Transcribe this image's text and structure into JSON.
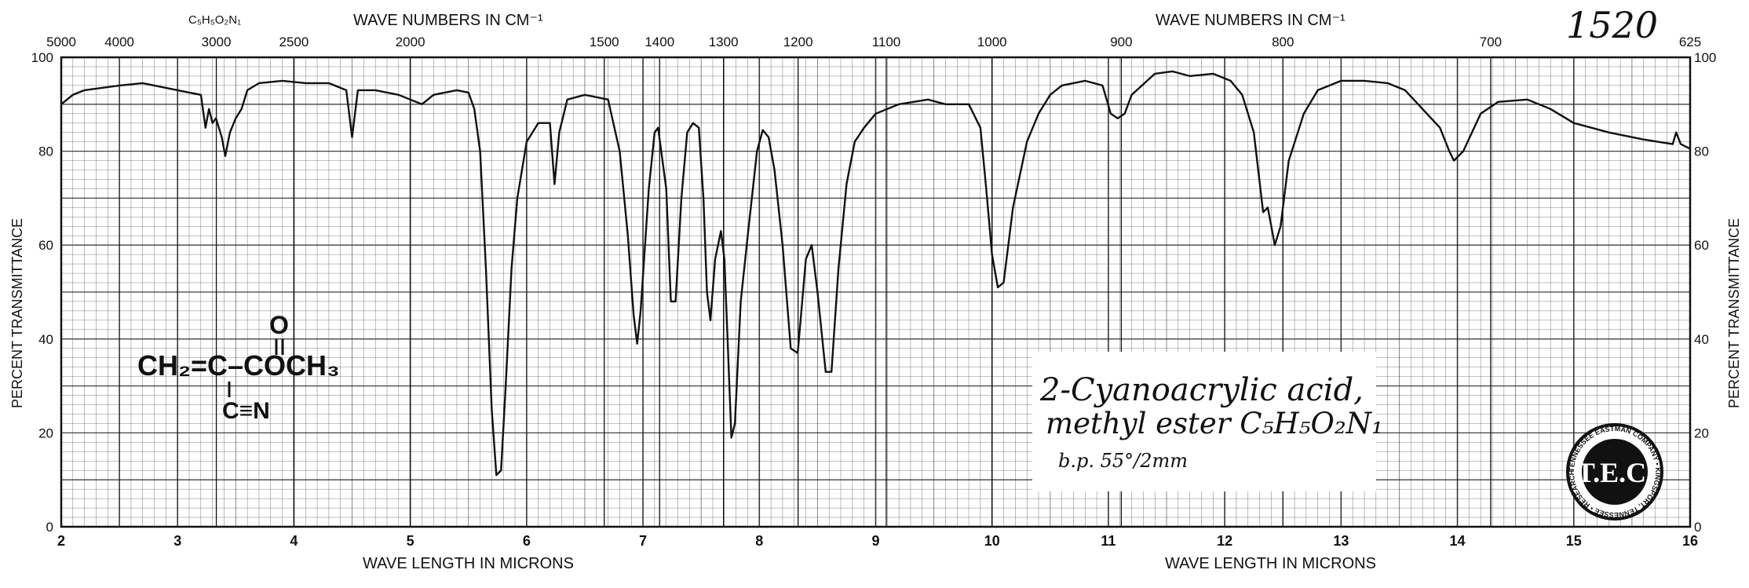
{
  "sheet_number": "1520",
  "formula_top": "C₅H₅O₂N₁",
  "header": {
    "wavenumber_label_left": "WAVE NUMBERS IN CM⁻¹",
    "wavenumber_label_right": "WAVE NUMBERS IN CM⁻¹",
    "wavelength_label_left": "WAVE LENGTH IN MICRONS",
    "wavelength_label_right": "WAVE LENGTH IN MICRONS",
    "ylabel_left": "PERCENT TRANSMITTANCE",
    "ylabel_right": "PERCENT TRANSMITTANCE"
  },
  "structure": {
    "oxygen": "O",
    "main_line": "CH₂=C–COCH₃",
    "branch": "C≡N"
  },
  "annotation": {
    "line1": "2-Cyanoacrylic acid,",
    "line2": "methyl ester C₅H₅O₂N₁",
    "line3": "b.p. 55°/2mm"
  },
  "seal": {
    "center": "T.E.C.",
    "ring": "TENNESSEE EASTMAN COMPANY • KINGSPORT, TENNESSEE • RESEARCH LABORATORIES"
  },
  "chart_data": {
    "type": "line",
    "xlabel": "WAVE LENGTH IN MICRONS",
    "ylabel": "PERCENT TRANSMITTANCE",
    "xlim": [
      2,
      16
    ],
    "ylim": [
      0,
      100
    ],
    "grid": true,
    "x_ticks": [
      2,
      3,
      4,
      5,
      6,
      7,
      8,
      9,
      10,
      11,
      12,
      13,
      14,
      15,
      16
    ],
    "y_ticks": [
      0,
      20,
      40,
      60,
      80,
      100
    ],
    "wavenumber_ticks": [
      {
        "label": "5000",
        "micron": 2.0
      },
      {
        "label": "4000",
        "micron": 2.5
      },
      {
        "label": "3000",
        "micron": 3.333
      },
      {
        "label": "2500",
        "micron": 4.0
      },
      {
        "label": "2000",
        "micron": 5.0
      },
      {
        "label": "1500",
        "micron": 6.667
      },
      {
        "label": "1400",
        "micron": 7.143
      },
      {
        "label": "1300",
        "micron": 7.692
      },
      {
        "label": "1200",
        "micron": 8.333
      },
      {
        "label": "1100",
        "micron": 9.091
      },
      {
        "label": "1000",
        "micron": 10.0
      },
      {
        "label": "900",
        "micron": 11.111
      },
      {
        "label": "800",
        "micron": 12.5
      },
      {
        "label": "700",
        "micron": 14.286
      },
      {
        "label": "625",
        "micron": 16.0
      }
    ],
    "series": [
      {
        "color": "#111111",
        "points": [
          [
            2.0,
            90
          ],
          [
            2.1,
            92
          ],
          [
            2.2,
            93
          ],
          [
            2.5,
            94
          ],
          [
            2.7,
            94.5
          ],
          [
            2.9,
            93.5
          ],
          [
            3.1,
            92.5
          ],
          [
            3.2,
            92
          ],
          [
            3.24,
            85
          ],
          [
            3.27,
            89
          ],
          [
            3.3,
            86
          ],
          [
            3.33,
            87
          ],
          [
            3.38,
            83
          ],
          [
            3.41,
            79
          ],
          [
            3.45,
            84
          ],
          [
            3.5,
            87
          ],
          [
            3.55,
            89
          ],
          [
            3.6,
            93
          ],
          [
            3.7,
            94.5
          ],
          [
            3.9,
            95
          ],
          [
            4.1,
            94.5
          ],
          [
            4.3,
            94.5
          ],
          [
            4.45,
            93
          ],
          [
            4.5,
            83
          ],
          [
            4.55,
            93
          ],
          [
            4.7,
            93
          ],
          [
            4.9,
            92
          ],
          [
            5.0,
            91
          ],
          [
            5.1,
            90
          ],
          [
            5.2,
            92
          ],
          [
            5.4,
            93
          ],
          [
            5.5,
            92.5
          ],
          [
            5.55,
            89
          ],
          [
            5.6,
            80
          ],
          [
            5.65,
            55
          ],
          [
            5.7,
            25
          ],
          [
            5.74,
            11
          ],
          [
            5.78,
            12
          ],
          [
            5.82,
            30
          ],
          [
            5.87,
            55
          ],
          [
            5.92,
            70
          ],
          [
            6.0,
            82
          ],
          [
            6.1,
            86
          ],
          [
            6.2,
            86
          ],
          [
            6.24,
            73
          ],
          [
            6.28,
            84
          ],
          [
            6.35,
            91
          ],
          [
            6.5,
            92
          ],
          [
            6.6,
            91.5
          ],
          [
            6.7,
            91
          ],
          [
            6.8,
            80
          ],
          [
            6.87,
            62
          ],
          [
            6.92,
            45
          ],
          [
            6.95,
            39
          ],
          [
            6.98,
            46
          ],
          [
            7.05,
            72
          ],
          [
            7.1,
            84
          ],
          [
            7.13,
            85
          ],
          [
            7.2,
            72
          ],
          [
            7.24,
            48
          ],
          [
            7.28,
            48
          ],
          [
            7.33,
            70
          ],
          [
            7.38,
            84
          ],
          [
            7.43,
            86
          ],
          [
            7.48,
            85
          ],
          [
            7.52,
            70
          ],
          [
            7.55,
            50
          ],
          [
            7.58,
            44
          ],
          [
            7.62,
            57
          ],
          [
            7.67,
            63
          ],
          [
            7.7,
            57
          ],
          [
            7.73,
            38
          ],
          [
            7.76,
            19
          ],
          [
            7.79,
            22
          ],
          [
            7.84,
            48
          ],
          [
            7.9,
            62
          ],
          [
            7.98,
            80
          ],
          [
            8.03,
            84.5
          ],
          [
            8.08,
            83
          ],
          [
            8.13,
            76
          ],
          [
            8.2,
            60
          ],
          [
            8.27,
            38
          ],
          [
            8.33,
            37
          ],
          [
            8.4,
            57
          ],
          [
            8.45,
            60
          ],
          [
            8.5,
            50
          ],
          [
            8.57,
            33
          ],
          [
            8.62,
            33
          ],
          [
            8.68,
            55
          ],
          [
            8.75,
            73
          ],
          [
            8.82,
            82
          ],
          [
            8.9,
            85
          ],
          [
            9.0,
            88
          ],
          [
            9.2,
            90
          ],
          [
            9.45,
            91
          ],
          [
            9.6,
            90
          ],
          [
            9.8,
            90
          ],
          [
            9.9,
            85
          ],
          [
            9.95,
            72
          ],
          [
            10.0,
            58
          ],
          [
            10.05,
            51
          ],
          [
            10.1,
            52
          ],
          [
            10.18,
            68
          ],
          [
            10.3,
            82
          ],
          [
            10.4,
            88
          ],
          [
            10.5,
            92
          ],
          [
            10.6,
            94
          ],
          [
            10.8,
            95
          ],
          [
            10.95,
            94
          ],
          [
            11.02,
            88
          ],
          [
            11.08,
            87
          ],
          [
            11.14,
            88
          ],
          [
            11.2,
            92
          ],
          [
            11.4,
            96.5
          ],
          [
            11.55,
            97
          ],
          [
            11.7,
            96
          ],
          [
            11.9,
            96.5
          ],
          [
            12.05,
            95
          ],
          [
            12.15,
            92
          ],
          [
            12.25,
            84
          ],
          [
            12.33,
            67
          ],
          [
            12.37,
            68
          ],
          [
            12.43,
            60
          ],
          [
            12.48,
            64
          ],
          [
            12.55,
            78
          ],
          [
            12.68,
            88
          ],
          [
            12.8,
            93
          ],
          [
            13.0,
            95
          ],
          [
            13.2,
            95
          ],
          [
            13.4,
            94.5
          ],
          [
            13.55,
            93
          ],
          [
            13.7,
            89
          ],
          [
            13.85,
            85
          ],
          [
            13.93,
            80
          ],
          [
            13.97,
            78
          ],
          [
            14.05,
            80
          ],
          [
            14.2,
            88
          ],
          [
            14.35,
            90.5
          ],
          [
            14.6,
            91
          ],
          [
            14.8,
            89
          ],
          [
            15.0,
            86
          ],
          [
            15.3,
            84
          ],
          [
            15.6,
            82.5
          ],
          [
            15.85,
            81.5
          ],
          [
            15.88,
            84
          ],
          [
            15.92,
            81.5
          ],
          [
            16.0,
            80.5
          ]
        ]
      }
    ]
  }
}
